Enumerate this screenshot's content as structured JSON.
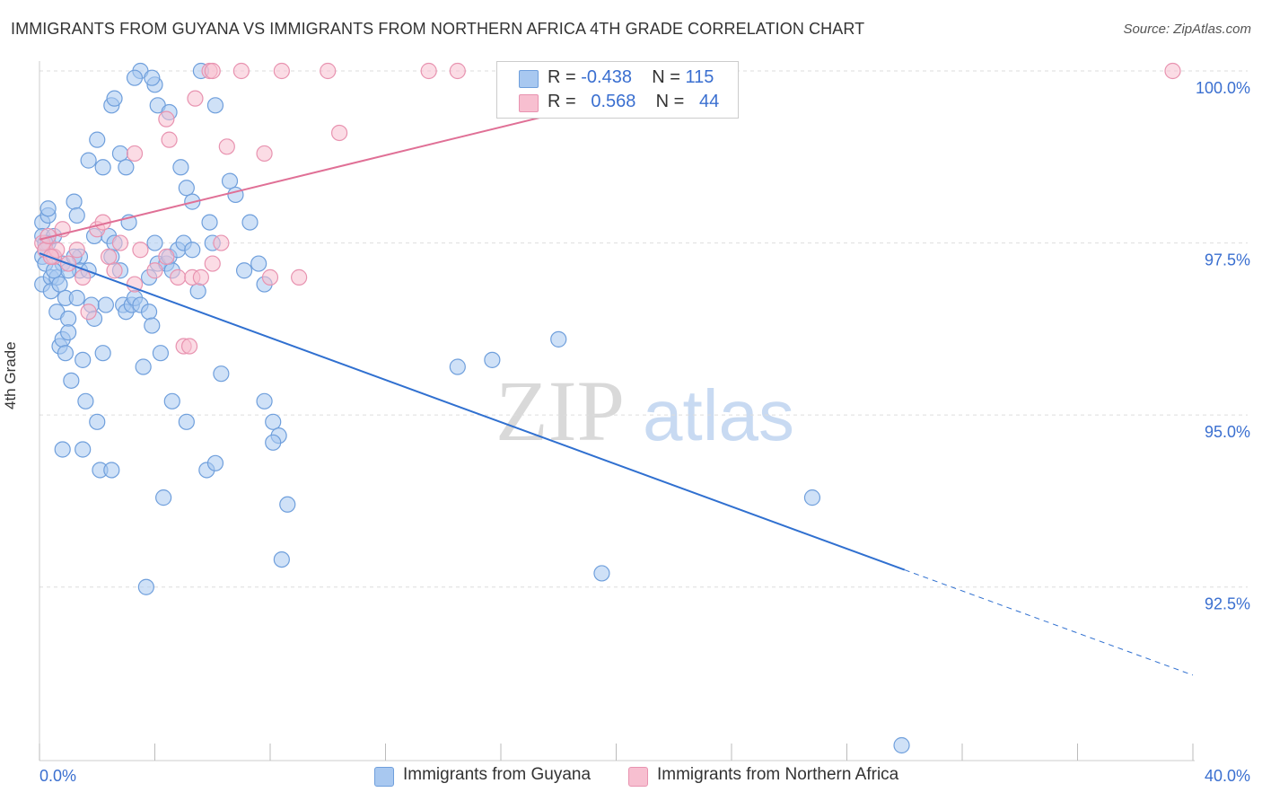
{
  "header": {
    "title": "IMMIGRANTS FROM GUYANA VS IMMIGRANTS FROM NORTHERN AFRICA 4TH GRADE CORRELATION CHART",
    "source": "Source: ZipAtlas.com"
  },
  "watermark": {
    "zip": "ZIP",
    "atlas": "atlas"
  },
  "stats": {
    "series1": {
      "r_label": "R =",
      "r_value": "-0.438",
      "n_label": "N =",
      "n_value": "115"
    },
    "series2": {
      "r_label": "R =",
      "r_value": "0.568",
      "n_label": "N =",
      "n_value": "44"
    }
  },
  "colors": {
    "guyana_fill": "#a8c8f0",
    "guyana_stroke": "#6f9fdc",
    "guyana_line": "#3070d0",
    "nafrica_fill": "#f7bfd0",
    "nafrica_stroke": "#e893b0",
    "nafrica_line": "#e07096",
    "axis_text": "#3a6fd0",
    "grid": "#dddddd"
  },
  "chart_data": {
    "type": "scatter",
    "title": "IMMIGRANTS FROM GUYANA VS IMMIGRANTS FROM NORTHERN AFRICA 4TH GRADE CORRELATION CHART",
    "xlabel": "",
    "ylabel": "4th Grade",
    "xlim": [
      0,
      40
    ],
    "ylim": [
      90.2,
      100.2
    ],
    "x_tick_labels": [
      "0.0%",
      "40.0%"
    ],
    "y_ticks": [
      92.5,
      95.0,
      97.5,
      100.0
    ],
    "y_tick_labels": [
      "92.5%",
      "95.0%",
      "97.5%",
      "100.0%"
    ],
    "grid": true,
    "legend_position": "bottom-center",
    "series": [
      {
        "name": "Immigrants from Guyana",
        "color": "#a8c8f0",
        "r": -0.438,
        "n": 115,
        "trend": {
          "x_start": 0,
          "y_start": 97.35,
          "x_solid_end": 30.0,
          "y_solid_end": 92.75,
          "x_dash_end": 40.0,
          "y_dash_end": 91.22
        },
        "points": [
          [
            0.1,
            97.8
          ],
          [
            0.1,
            97.6
          ],
          [
            0.1,
            97.3
          ],
          [
            0.1,
            96.9
          ],
          [
            0.2,
            97.4
          ],
          [
            0.2,
            97.2
          ],
          [
            0.3,
            97.9
          ],
          [
            0.3,
            97.5
          ],
          [
            0.4,
            97.0
          ],
          [
            0.4,
            96.8
          ],
          [
            0.5,
            97.6
          ],
          [
            0.5,
            97.3
          ],
          [
            0.6,
            97.0
          ],
          [
            0.6,
            96.5
          ],
          [
            0.7,
            96.0
          ],
          [
            0.8,
            96.1
          ],
          [
            0.8,
            97.2
          ],
          [
            0.9,
            96.7
          ],
          [
            0.9,
            95.9
          ],
          [
            1.0,
            96.4
          ],
          [
            1.0,
            96.2
          ],
          [
            1.1,
            95.5
          ],
          [
            1.2,
            98.1
          ],
          [
            1.3,
            96.7
          ],
          [
            1.3,
            97.9
          ],
          [
            1.4,
            97.3
          ],
          [
            1.4,
            97.1
          ],
          [
            1.5,
            95.8
          ],
          [
            1.6,
            95.2
          ],
          [
            1.7,
            97.1
          ],
          [
            1.8,
            96.6
          ],
          [
            1.9,
            96.4
          ],
          [
            2.0,
            94.9
          ],
          [
            2.1,
            94.2
          ],
          [
            2.2,
            95.9
          ],
          [
            2.3,
            96.6
          ],
          [
            2.4,
            97.6
          ],
          [
            2.5,
            97.3
          ],
          [
            2.6,
            97.5
          ],
          [
            2.8,
            97.1
          ],
          [
            2.9,
            96.6
          ],
          [
            3.0,
            96.5
          ],
          [
            3.1,
            97.8
          ],
          [
            3.2,
            96.6
          ],
          [
            3.3,
            96.7
          ],
          [
            3.5,
            96.6
          ],
          [
            3.6,
            95.7
          ],
          [
            3.7,
            92.5
          ],
          [
            3.8,
            96.5
          ],
          [
            3.9,
            96.3
          ],
          [
            4.0,
            97.5
          ],
          [
            4.1,
            97.2
          ],
          [
            4.2,
            95.9
          ],
          [
            4.3,
            93.8
          ],
          [
            4.4,
            97.2
          ],
          [
            4.5,
            97.3
          ],
          [
            4.6,
            95.2
          ],
          [
            4.8,
            97.4
          ],
          [
            5.0,
            97.5
          ],
          [
            5.1,
            94.9
          ],
          [
            5.3,
            97.4
          ],
          [
            5.5,
            96.8
          ],
          [
            5.8,
            94.2
          ],
          [
            6.0,
            97.5
          ],
          [
            6.3,
            95.6
          ],
          [
            7.1,
            97.1
          ],
          [
            7.8,
            96.9
          ],
          [
            7.6,
            97.2
          ],
          [
            2.5,
            99.5
          ],
          [
            2.8,
            98.8
          ],
          [
            3.0,
            98.6
          ],
          [
            2.0,
            99.0
          ],
          [
            2.2,
            98.6
          ],
          [
            3.5,
            100.0
          ],
          [
            2.6,
            99.6
          ],
          [
            4.1,
            99.5
          ],
          [
            4.9,
            98.6
          ],
          [
            5.1,
            98.3
          ],
          [
            5.3,
            98.1
          ],
          [
            6.1,
            99.5
          ],
          [
            6.6,
            98.4
          ],
          [
            6.8,
            98.2
          ],
          [
            7.3,
            97.8
          ],
          [
            5.6,
            100.0
          ],
          [
            3.3,
            99.9
          ],
          [
            4.0,
            99.8
          ],
          [
            4.5,
            99.4
          ],
          [
            3.9,
            99.9
          ],
          [
            1.7,
            98.7
          ],
          [
            1.9,
            97.6
          ],
          [
            0.7,
            96.9
          ],
          [
            1.0,
            97.1
          ],
          [
            7.8,
            95.2
          ],
          [
            8.1,
            94.9
          ],
          [
            8.3,
            94.7
          ],
          [
            8.6,
            93.7
          ],
          [
            8.4,
            92.9
          ],
          [
            8.1,
            94.6
          ],
          [
            1.5,
            94.5
          ],
          [
            0.8,
            94.5
          ],
          [
            2.5,
            94.2
          ],
          [
            6.1,
            94.3
          ],
          [
            14.5,
            95.7
          ],
          [
            15.7,
            95.8
          ],
          [
            18.0,
            96.1
          ],
          [
            19.5,
            92.7
          ],
          [
            26.8,
            93.8
          ],
          [
            29.9,
            90.2
          ],
          [
            0.3,
            98.0
          ],
          [
            0.5,
            97.1
          ],
          [
            1.2,
            97.3
          ],
          [
            0.2,
            97.5
          ],
          [
            5.9,
            97.8
          ],
          [
            3.8,
            97.0
          ],
          [
            4.6,
            97.1
          ]
        ]
      },
      {
        "name": "Immigrants from Northern Africa",
        "color": "#f7bfd0",
        "r": 0.568,
        "n": 44,
        "trend": {
          "x_start": 0,
          "y_start": 97.55,
          "x_end": 24.0,
          "y_end": 100.0
        },
        "points": [
          [
            0.1,
            97.5
          ],
          [
            0.2,
            97.4
          ],
          [
            0.3,
            97.6
          ],
          [
            0.5,
            97.3
          ],
          [
            0.6,
            97.4
          ],
          [
            0.8,
            97.7
          ],
          [
            1.0,
            97.2
          ],
          [
            1.3,
            97.4
          ],
          [
            1.5,
            97.0
          ],
          [
            1.7,
            96.5
          ],
          [
            2.0,
            97.7
          ],
          [
            2.2,
            97.8
          ],
          [
            2.4,
            97.3
          ],
          [
            2.6,
            97.1
          ],
          [
            2.8,
            97.5
          ],
          [
            3.3,
            96.9
          ],
          [
            3.5,
            97.4
          ],
          [
            4.0,
            97.1
          ],
          [
            4.4,
            97.3
          ],
          [
            4.8,
            97.0
          ],
          [
            5.0,
            96.0
          ],
          [
            5.2,
            96.0
          ],
          [
            5.3,
            97.0
          ],
          [
            5.6,
            97.0
          ],
          [
            6.0,
            97.2
          ],
          [
            6.3,
            97.5
          ],
          [
            6.5,
            98.9
          ],
          [
            7.8,
            98.8
          ],
          [
            8.0,
            97.0
          ],
          [
            9.0,
            97.0
          ],
          [
            10.4,
            99.1
          ],
          [
            4.4,
            99.3
          ],
          [
            4.5,
            99.0
          ],
          [
            3.3,
            98.8
          ],
          [
            5.4,
            99.6
          ],
          [
            5.9,
            100.0
          ],
          [
            6.0,
            100.0
          ],
          [
            7.0,
            100.0
          ],
          [
            8.4,
            100.0
          ],
          [
            10.0,
            100.0
          ],
          [
            13.5,
            100.0
          ],
          [
            14.5,
            100.0
          ],
          [
            39.3,
            100.0
          ],
          [
            0.4,
            97.3
          ]
        ]
      }
    ]
  },
  "legend": {
    "items": [
      {
        "label": "Immigrants from Guyana"
      },
      {
        "label": "Immigrants from Northern Africa"
      }
    ]
  }
}
